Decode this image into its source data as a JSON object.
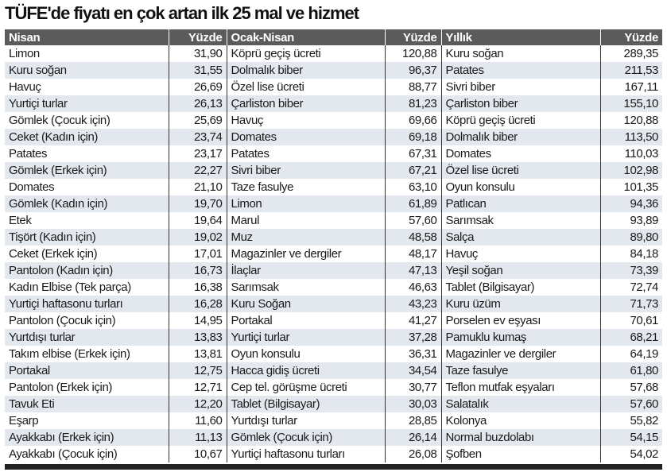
{
  "title": "TÜFE'de fiyatı en çok artan ilk 25 mal ve hizmet",
  "colors": {
    "header_bg": "#5b5b5b",
    "alt_row_bg": "#e2e8ee",
    "bottom_bar": "#222222"
  },
  "chart_data": {
    "type": "table",
    "title": "TÜFE'de fiyatı en çok artan ilk 25 mal ve hizmet",
    "columns": [
      "Nisan",
      "Yüzde",
      "Ocak-Nisan",
      "Yüzde",
      "Yıllık",
      "Yüzde"
    ],
    "rows": [
      [
        "Limon",
        "31,90",
        "Köprü geçiş ücreti",
        "120,88",
        "Kuru soğan",
        "289,35"
      ],
      [
        "Kuru soğan",
        "31,55",
        "Dolmalık biber",
        "96,37",
        "Patates",
        "211,53"
      ],
      [
        "Havuç",
        "26,69",
        "Özel lise ücreti",
        "88,77",
        "Sivri biber",
        "167,11"
      ],
      [
        "Yurtiçi turlar",
        "26,13",
        "Çarliston biber",
        "81,23",
        "Çarliston biber",
        "155,10"
      ],
      [
        "Gömlek (Çocuk için)",
        "25,69",
        "Havuç",
        "69,66",
        "Köprü geçiş ücreti",
        "120,88"
      ],
      [
        "Ceket (Kadın için)",
        "23,74",
        "Domates",
        "69,18",
        "Dolmalık biber",
        "113,50"
      ],
      [
        "Patates",
        "23,17",
        "Patates",
        "67,31",
        "Domates",
        "110,03"
      ],
      [
        "Gömlek (Erkek için)",
        "22,27",
        "Sivri biber",
        "67,21",
        "Özel lise ücreti",
        "102,98"
      ],
      [
        "Domates",
        "21,10",
        "Taze fasulye",
        "63,10",
        "Oyun konsulu",
        "101,35"
      ],
      [
        "Gömlek (Kadın için)",
        "19,70",
        "Limon",
        "61,89",
        "Patlıcan",
        "94,36"
      ],
      [
        "Etek",
        "19,64",
        "Marul",
        "57,60",
        "Sarımsak",
        "93,89"
      ],
      [
        "Tişört (Kadın için)",
        "19,02",
        "Muz",
        "48,58",
        "Salça",
        "89,80"
      ],
      [
        "Ceket (Erkek için)",
        "17,01",
        "Magazinler ve dergiler",
        "48,17",
        "Havuç",
        "84,18"
      ],
      [
        "Pantolon (Kadın için)",
        "16,73",
        "İlaçlar",
        "47,13",
        "Yeşil soğan",
        "73,39"
      ],
      [
        "Kadın Elbise (Tek parça)",
        "16,38",
        "Sarımsak",
        "46,63",
        "Tablet (Bilgisayar)",
        "72,74"
      ],
      [
        "Yurtiçi haftasonu turları",
        "16,28",
        "Kuru Soğan",
        "43,23",
        "Kuru üzüm",
        "71,73"
      ],
      [
        "Pantolon (Çocuk için)",
        "14,95",
        "Portakal",
        "41,27",
        "Porselen ev eşyası",
        "70,61"
      ],
      [
        "Yurtdışı turlar",
        "13,83",
        "Yurtiçi turlar",
        "37,28",
        "Pamuklu kumaş",
        "68,21"
      ],
      [
        "Takım elbise (Erkek için)",
        "13,81",
        "Oyun konsulu",
        "36,31",
        "Magazinler ve dergiler",
        "64,19"
      ],
      [
        "Portakal",
        "12,75",
        "Hacca gidiş ücreti",
        "34,54",
        "Taze fasulye",
        "61,80"
      ],
      [
        "Pantolon (Erkek için)",
        "12,71",
        "Cep tel. görüşme ücreti",
        "30,77",
        "Teflon mutfak eşyaları",
        "57,68"
      ],
      [
        "Tavuk Eti",
        "12,20",
        "Tablet (Bilgisayar)",
        "30,03",
        "Salatalık",
        "57,60"
      ],
      [
        "Eşarp",
        "11,60",
        "Yurtdışı turlar",
        "28,85",
        "Kolonya",
        "55,82"
      ],
      [
        "Ayakkabı (Erkek için)",
        "11,13",
        "Gömlek (Çocuk için)",
        "26,14",
        "Normal buzdolabı",
        "54,15"
      ],
      [
        "Ayakkabı (Çocuk için)",
        "10,67",
        "Yurtiçi haftasonu turları",
        "26,08",
        "Şofben",
        "54,02"
      ]
    ]
  }
}
